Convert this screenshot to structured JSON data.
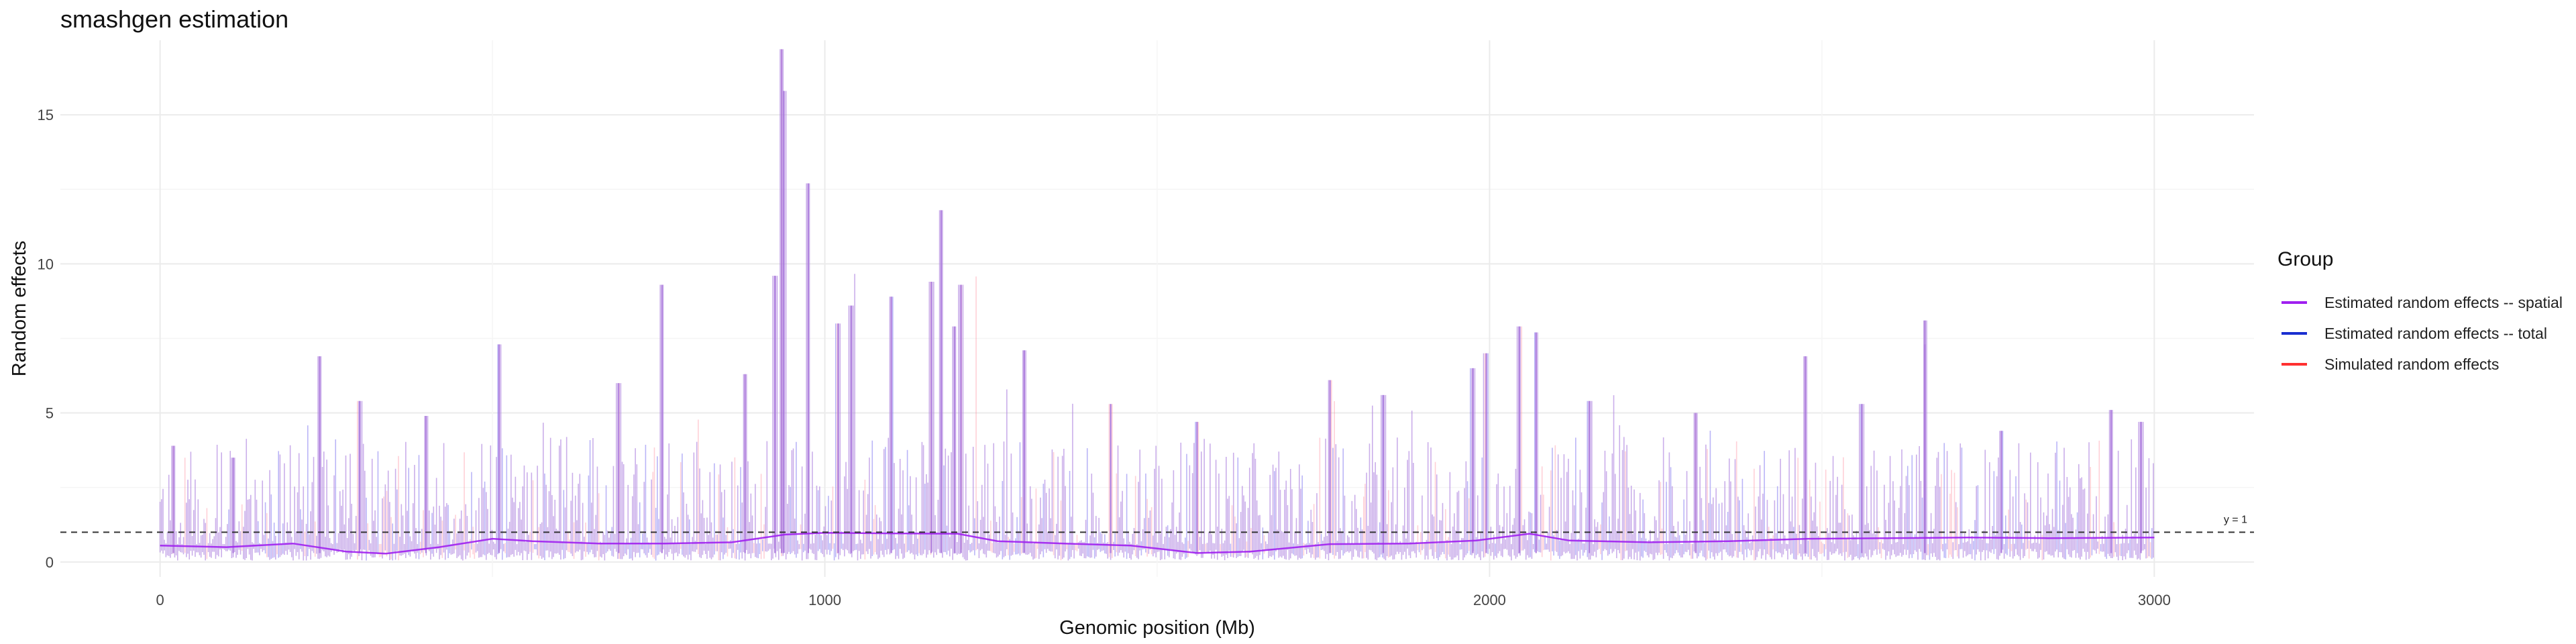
{
  "chart_data": {
    "type": "line",
    "title": "smashgen estimation",
    "xlabel": "Genomic position (Mb)",
    "ylabel": "Random effects",
    "xlim": [
      -150,
      3150
    ],
    "ylim": [
      -0.5,
      17.5
    ],
    "x_ticks": [
      0,
      1000,
      2000,
      3000
    ],
    "y_ticks": [
      0,
      5,
      10,
      15
    ],
    "grid": true,
    "legend_position": "right",
    "legend_title": "Group",
    "series": [
      {
        "name": "Estimated random effects -- spatial",
        "color": "#A020F0",
        "x": [
          0,
          100,
          200,
          280,
          340,
          420,
          500,
          560,
          660,
          760,
          860,
          940,
          1000,
          1100,
          1200,
          1260,
          1360,
          1460,
          1560,
          1640,
          1760,
          1880,
          1980,
          2060,
          2120,
          2240,
          2360,
          2480,
          2600,
          2720,
          2840,
          3000
        ],
        "values": [
          0.55,
          0.5,
          0.62,
          0.35,
          0.28,
          0.5,
          0.78,
          0.7,
          0.62,
          0.62,
          0.66,
          0.92,
          0.98,
          0.96,
          0.95,
          0.7,
          0.62,
          0.55,
          0.3,
          0.35,
          0.6,
          0.62,
          0.72,
          0.95,
          0.72,
          0.66,
          0.7,
          0.78,
          0.8,
          0.82,
          0.8,
          0.82
        ]
      },
      {
        "name": "Estimated random effects -- total",
        "color": "#1a2fd0",
        "x": [
          0,
          3000
        ],
        "values": [
          0.8,
          0.8
        ]
      },
      {
        "name": "Simulated random effects",
        "color": "#ff3030",
        "x": [
          0,
          3000
        ],
        "values": [
          0.8,
          0.8
        ]
      }
    ],
    "reference_line": {
      "y": 1,
      "label": "y = 1",
      "style": "dashed"
    },
    "noise_peaks": [
      {
        "x": 935,
        "y": 17.2
      },
      {
        "x": 938,
        "y": 15.8
      },
      {
        "x": 975,
        "y": 12.7
      },
      {
        "x": 925,
        "y": 9.6
      },
      {
        "x": 1175,
        "y": 11.8
      },
      {
        "x": 1160,
        "y": 9.4
      },
      {
        "x": 1020,
        "y": 8.0
      },
      {
        "x": 1100,
        "y": 8.9
      },
      {
        "x": 1040,
        "y": 8.6
      },
      {
        "x": 1205,
        "y": 9.3
      },
      {
        "x": 1195,
        "y": 7.9
      },
      {
        "x": 755,
        "y": 9.3
      },
      {
        "x": 2045,
        "y": 7.9
      },
      {
        "x": 2070,
        "y": 7.7
      },
      {
        "x": 2655,
        "y": 8.1
      },
      {
        "x": 2655,
        "y": 7.3
      },
      {
        "x": 2475,
        "y": 6.9
      },
      {
        "x": 240,
        "y": 6.9
      },
      {
        "x": 510,
        "y": 7.3
      },
      {
        "x": 1995,
        "y": 7.0
      },
      {
        "x": 1975,
        "y": 6.5
      },
      {
        "x": 2935,
        "y": 5.1
      },
      {
        "x": 2980,
        "y": 4.7
      },
      {
        "x": 20,
        "y": 3.9
      },
      {
        "x": 110,
        "y": 3.5
      },
      {
        "x": 300,
        "y": 5.4
      },
      {
        "x": 400,
        "y": 4.9
      },
      {
        "x": 690,
        "y": 6.0
      },
      {
        "x": 880,
        "y": 6.3
      },
      {
        "x": 1300,
        "y": 7.1
      },
      {
        "x": 1430,
        "y": 5.3
      },
      {
        "x": 1560,
        "y": 4.7
      },
      {
        "x": 1760,
        "y": 6.1
      },
      {
        "x": 1840,
        "y": 5.6
      },
      {
        "x": 2150,
        "y": 5.4
      },
      {
        "x": 2310,
        "y": 5.0
      },
      {
        "x": 2560,
        "y": 5.3
      },
      {
        "x": 2770,
        "y": 4.4
      }
    ]
  }
}
